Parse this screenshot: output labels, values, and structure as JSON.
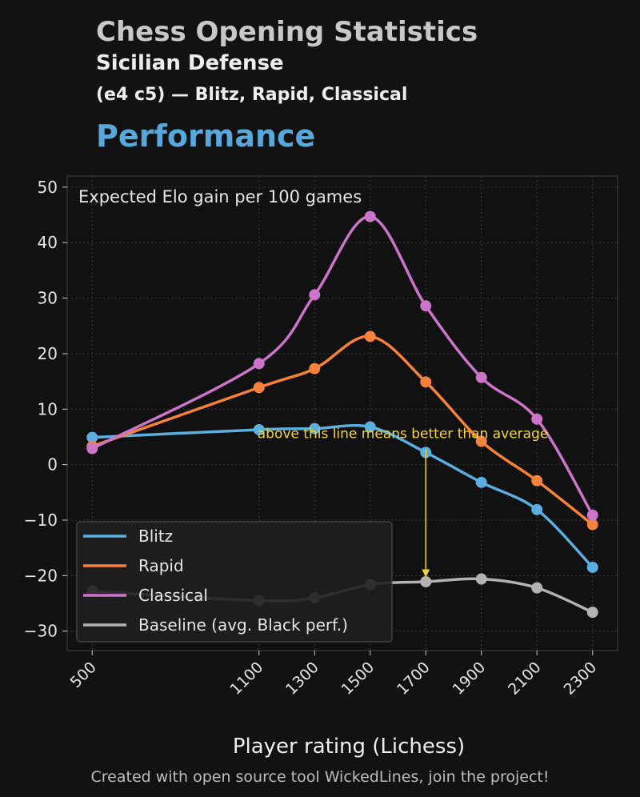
{
  "header": {
    "title": "Chess Opening Statistics",
    "subtitle1": "Sicilian Defense",
    "subtitle2": "(e4 c5) — Blitz, Rapid, Classical",
    "section": "Performance"
  },
  "footer": "Created with open source tool WickedLines, join the project!",
  "chart_data": {
    "type": "line",
    "title": "Expected Elo gain per 100 games",
    "xlabel": "Player rating (Lichess)",
    "ylabel": "",
    "x": [
      500,
      1100,
      1300,
      1500,
      1700,
      1900,
      2100,
      2300
    ],
    "x_tick_labels": [
      "500",
      "1100",
      "1300",
      "1500",
      "1700",
      "1900",
      "2100",
      "2300"
    ],
    "y_ticks": [
      -30,
      -20,
      -10,
      0,
      10,
      20,
      30,
      40,
      50
    ],
    "y_tick_labels": [
      "−30",
      "−20",
      "−10",
      "0",
      "10",
      "20",
      "30",
      "40",
      "50"
    ],
    "xlim": [
      410,
      2390
    ],
    "ylim": [
      -33.5,
      52
    ],
    "grid": true,
    "legend_position": "lower-left",
    "series": [
      {
        "name": "Blitz",
        "color": "#5aaee0",
        "values": [
          4.9,
          6.3,
          6.5,
          6.8,
          2.2,
          -3.2,
          -8.1,
          -18.5
        ]
      },
      {
        "name": "Rapid",
        "color": "#f5813a",
        "values": [
          3.3,
          13.9,
          17.3,
          23.1,
          14.9,
          4.2,
          -2.9,
          -10.8
        ]
      },
      {
        "name": "Classical",
        "color": "#cc74c9",
        "values": [
          2.9,
          18.2,
          30.6,
          44.7,
          28.6,
          15.7,
          8.2,
          -9.1
        ]
      },
      {
        "name": "Baseline (avg. Black perf.)",
        "color": "#b3b3b3",
        "values": [
          -22.8,
          -24.5,
          -24.0,
          -21.6,
          -21.1,
          -20.6,
          -22.2,
          -26.6
        ]
      }
    ],
    "annotation": {
      "text": "above this line means better than average",
      "color": "#f0d43a",
      "text_x": 1100,
      "text_y": 4.8,
      "arrow_x": 1700,
      "arrow_from": 2.8,
      "arrow_to": -20.3
    }
  }
}
